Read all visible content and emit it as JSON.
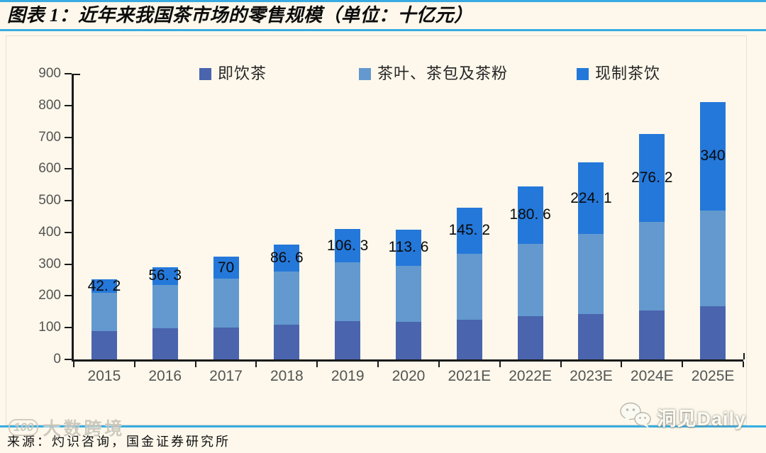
{
  "header": {
    "title": "图表 1：近年来我国茶市场的零售规模（单位：十亿元）"
  },
  "chart_data": {
    "type": "bar",
    "stacked": true,
    "title": "近年来我国茶市场的零售规模",
    "unit": "十亿元",
    "categories": [
      "2015",
      "2016",
      "2017",
      "2018",
      "2019",
      "2020",
      "2021E",
      "2022E",
      "2023E",
      "2024E",
      "2025E"
    ],
    "series": [
      {
        "name": "即饮茶",
        "color": "#4A64AE",
        "values": [
          90,
          98,
          101,
          110,
          120,
          118,
          125,
          136,
          143,
          155,
          168
        ]
      },
      {
        "name": "茶叶、茶包及茶粉",
        "color": "#6399CE",
        "values": [
          120,
          137,
          153,
          166,
          185,
          177,
          208,
          229,
          253,
          279,
          302
        ]
      },
      {
        "name": "现制茶饮",
        "color": "#2478DA",
        "values": [
          42.2,
          56.3,
          70,
          86.6,
          106.3,
          113.6,
          145.2,
          180.6,
          224.1,
          276.2,
          340
        ]
      }
    ],
    "data_labels_series": "现制茶饮",
    "data_labels": [
      "42.2",
      "56.3",
      "70",
      "86.6",
      "106.3",
      "113.6",
      "145.2",
      "180.6",
      "224.1",
      "276.2",
      "340"
    ],
    "ylim": [
      0,
      900
    ],
    "ytick_interval": 100,
    "grid": false,
    "legend_position": "top"
  },
  "footer": {
    "source": "来源：灼识咨询，国金证券研究所",
    "watermark_left": {
      "logo": "100",
      "text": "大数跨境"
    },
    "watermark_right": "洞见Daily"
  },
  "colors": {
    "background": "#FDF8EB",
    "divider_blue": "#38ACE2",
    "axis_black": "#1A1A1A",
    "tick_label_gray": "#545454",
    "series_dark_blue": "#4A64AE",
    "series_light_blue": "#6399CE",
    "series_bright_blue": "#2478DA"
  }
}
